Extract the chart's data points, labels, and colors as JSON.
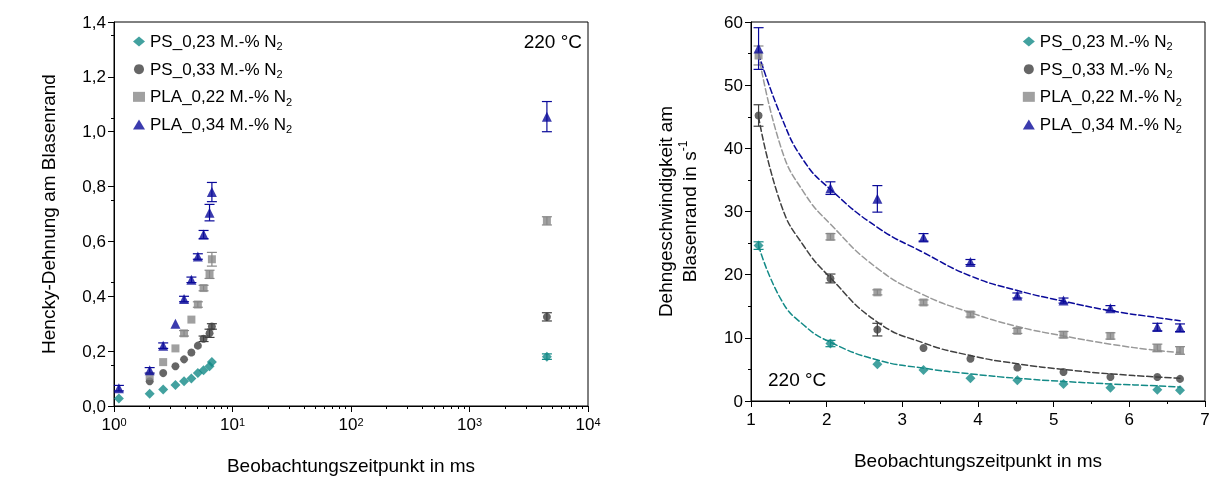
{
  "chart_data": [
    {
      "type": "scatter",
      "xlabel": "Beobachtungszeitpunkt in ms",
      "ylabel": "Hencky-Dehnung am Blasenrand",
      "log": "x",
      "xlim": [
        1,
        10000
      ],
      "xticks": [
        {
          "value": 1,
          "label": "10$^{0}$"
        },
        {
          "value": 10,
          "label": "10$^{1}$"
        },
        {
          "value": 100,
          "label": "10$^{2}$"
        },
        {
          "value": 1000,
          "label": "10$^{3}$"
        },
        {
          "value": 10000,
          "label": "10$^{4}$"
        }
      ],
      "ylim": [
        0,
        1.4
      ],
      "yticks": [
        {
          "value": 0,
          "label": "0,0"
        },
        {
          "value": 0.2,
          "label": "0,2"
        },
        {
          "value": 0.4,
          "label": "0,4"
        },
        {
          "value": 0.6,
          "label": "0,6"
        },
        {
          "value": 0.8,
          "label": "0,8"
        },
        {
          "value": 1,
          "label": "1,0"
        },
        {
          "value": 1.2,
          "label": "1,2"
        },
        {
          "value": 1.4,
          "label": "1,4"
        }
      ],
      "grid": false,
      "legend": "top left",
      "annotations": [
        "220 °C"
      ],
      "x": [
        1.1,
        2,
        2.6,
        3.3,
        3.9,
        4.5,
        5.1,
        5.7,
        6.4,
        6.7,
        4500
      ],
      "series": [
        {
          "name": "PS_0,23 M.-% N$_{2}$",
          "color": "#138a87",
          "marker": "diamond",
          "values": [
            0.027,
            0.045,
            0.06,
            0.077,
            0.09,
            0.1,
            0.12,
            0.13,
            0.145,
            0.16,
            0.18
          ],
          "errors": [
            null,
            null,
            null,
            null,
            null,
            null,
            null,
            null,
            null,
            null,
            0.01
          ]
        },
        {
          "name": "PS_0,33 M.-% N$_{2}$",
          "color": "#404040",
          "marker": "circle",
          "values": [
            null,
            0.09,
            0.12,
            0.145,
            0.17,
            0.195,
            0.22,
            0.245,
            0.265,
            0.29,
            0.325
          ],
          "errors": [
            null,
            null,
            null,
            null,
            null,
            null,
            null,
            0.01,
            0.015,
            0.01,
            0.015
          ]
        },
        {
          "name": "PLA_0,22 M.-% N$_{2}$",
          "color": "#888888",
          "marker": "square",
          "values": [
            null,
            0.11,
            0.16,
            0.21,
            0.265,
            0.315,
            0.37,
            0.43,
            0.48,
            0.535,
            0.675
          ],
          "errors": [
            null,
            null,
            null,
            null,
            0.01,
            null,
            0.01,
            0.01,
            0.015,
            0.025,
            0.015
          ]
        },
        {
          "name": "PLA_0,34 M.-% N$_{2}$",
          "color": "#0a0a9a",
          "marker": "triangle",
          "values": [
            0.065,
            0.13,
            0.22,
            0.3,
            0.39,
            0.46,
            0.545,
            0.625,
            0.705,
            0.78,
            1.055
          ],
          "errors": [
            0.01,
            0.01,
            0.01,
            null,
            0.01,
            0.01,
            0.01,
            0.015,
            0.03,
            0.035,
            0.055
          ]
        }
      ]
    },
    {
      "type": "scatter",
      "xlabel": "Beobachtungszeitpunkt in ms",
      "ylabel": "Dehngeschwindigkeit am\nBlasenrand in s$^{-1}$",
      "xlim": [
        1,
        7
      ],
      "xticks": [
        1,
        2,
        3,
        4,
        5,
        6,
        7
      ],
      "ylim": [
        0,
        60
      ],
      "yticks": [
        0,
        10,
        20,
        30,
        40,
        50,
        60
      ],
      "grid": false,
      "legend": "top right",
      "annotations": [
        "220 °C"
      ],
      "x": [
        1.1,
        2.05,
        2.67,
        3.28,
        3.9,
        4.52,
        5.13,
        5.75,
        6.37,
        6.67
      ],
      "series": [
        {
          "name": "PS_0,23 M.-% N$_{2}$",
          "color": "#138a87",
          "marker": "diamond",
          "values": [
            24.6,
            9.1,
            5.8,
            4.9,
            3.6,
            3.3,
            2.7,
            2.1,
            1.8,
            1.7
          ],
          "errors": [
            0.6,
            0.5,
            null,
            null,
            null,
            null,
            null,
            null,
            null,
            null
          ]
        },
        {
          "name": "PS_0,33 M.-% N$_{2}$",
          "color": "#404040",
          "marker": "circle",
          "values": [
            45.2,
            19.4,
            11.3,
            8.4,
            6.7,
            5.3,
            4.6,
            3.8,
            3.8,
            3.5
          ],
          "errors": [
            1.7,
            0.7,
            1.0,
            null,
            null,
            null,
            null,
            null,
            null,
            null
          ]
        },
        {
          "name": "PLA_0,22 M.-% N$_{2}$",
          "color": "#888888",
          "marker": "square",
          "values": [
            54.7,
            26,
            17.2,
            15.6,
            13.7,
            11.1,
            10.5,
            10.3,
            8.4,
            8.0
          ],
          "errors": [
            1.5,
            0.5,
            0.4,
            0.4,
            0.4,
            0.4,
            0.5,
            0.5,
            0.6,
            0.6
          ]
        },
        {
          "name": "PLA_0,34 M.-% N$_{2}$",
          "color": "#0a0a9a",
          "marker": "triangle",
          "values": [
            55.8,
            33.7,
            32,
            25.9,
            22,
            16.7,
            15.9,
            14.7,
            11.7,
            11.6
          ],
          "errors": [
            3.3,
            1.0,
            2.1,
            0.6,
            0.4,
            0.4,
            0.4,
            0.4,
            0.6,
            0.6
          ]
        },
        {
          "type": "line",
          "color": "#138a87",
          "line_style": "dashed",
          "marker": "none",
          "x": [
            1.1,
            1.4,
            1.7,
            2.05,
            2.67,
            3.28,
            3.9,
            4.52,
            5.13,
            5.75,
            6.37,
            6.67
          ],
          "values": [
            24.6,
            16,
            12,
            9.3,
            6.5,
            5.2,
            4.3,
            3.6,
            3.1,
            2.7,
            2.4,
            2.2
          ]
        },
        {
          "type": "line",
          "color": "#404040",
          "line_style": "dashed",
          "marker": "none",
          "x": [
            1.1,
            1.4,
            1.7,
            2.05,
            2.67,
            3.28,
            3.9,
            4.52,
            5.13,
            5.75,
            6.37,
            6.67
          ],
          "values": [
            45,
            31,
            24.5,
            19.5,
            12.5,
            9.2,
            7.2,
            5.9,
            5,
            4.3,
            3.8,
            3.6
          ]
        },
        {
          "type": "line",
          "color": "#999999",
          "line_style": "dashed",
          "marker": "none",
          "x": [
            1.1,
            1.4,
            1.7,
            2.05,
            2.67,
            3.28,
            3.9,
            4.52,
            5.13,
            5.75,
            6.37,
            6.67
          ],
          "values": [
            55,
            40,
            33,
            28,
            21,
            16.8,
            14,
            11.8,
            10.3,
            9,
            8,
            7.7
          ]
        },
        {
          "type": "line",
          "color": "#0a0a9a",
          "line_style": "dashed",
          "marker": "none",
          "x": [
            1.1,
            1.4,
            1.7,
            2.05,
            2.67,
            3.28,
            3.9,
            4.52,
            5.13,
            5.75,
            6.37,
            6.67
          ],
          "values": [
            55,
            45,
            38,
            33.5,
            27.5,
            23.5,
            19.8,
            17.5,
            15.8,
            14.3,
            13.2,
            12.7
          ]
        }
      ]
    }
  ]
}
